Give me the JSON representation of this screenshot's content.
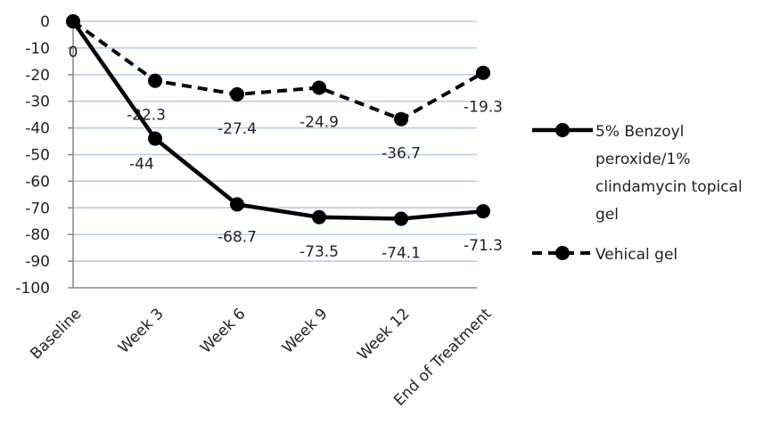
{
  "chart_data": {
    "type": "line",
    "categories": [
      "Baseline",
      "Week 3",
      "Week 6",
      "Week 9",
      "Week 12",
      "End of Treatment"
    ],
    "series": [
      {
        "name_lines": [
          "5% Benzoyl",
          "peroxide/1%",
          "clindamycin topical",
          "gel"
        ],
        "values": [
          0,
          -44,
          -68.7,
          -73.5,
          -74.1,
          -71.3
        ],
        "labels": [
          "0",
          "-44",
          "-68.7",
          "-73.5",
          "-74.1",
          "-71.3"
        ],
        "line_style": "solid",
        "color": "#000000"
      },
      {
        "name_lines": [
          "Vehical gel"
        ],
        "values": [
          0,
          -22.3,
          -27.4,
          -24.9,
          -36.7,
          -19.3
        ],
        "labels": [
          "",
          "-22.3",
          "-27.4",
          "-24.9",
          "-36.7",
          "-19.3"
        ],
        "line_style": "dashed",
        "color": "#000000"
      }
    ],
    "yticks": [
      "0",
      "-10",
      "-20",
      "-30",
      "-40",
      "-50",
      "-60",
      "-70",
      "-80",
      "-90",
      "-100"
    ],
    "ylim": [
      -100,
      0
    ],
    "grid": true,
    "gridline_color": "#b8c8e8",
    "legend": "right",
    "title": "",
    "xlabel": "",
    "ylabel": ""
  }
}
